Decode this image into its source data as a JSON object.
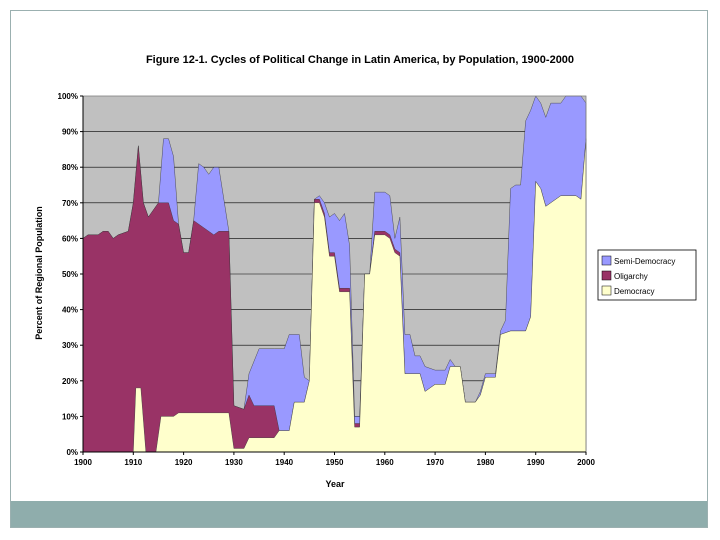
{
  "chart_data": {
    "type": "area",
    "stacked": true,
    "title": "Figure 12-1.  Cycles of Political Change in Latin America, by Population, 1900-2000",
    "xlabel": "Year",
    "ylabel": "Percent of Regional Population",
    "xlim": [
      1900,
      2000
    ],
    "ylim": [
      0,
      100
    ],
    "x_ticks": [
      "1900",
      "1910",
      "1920",
      "1930",
      "1940",
      "1950",
      "1960",
      "1970",
      "1980",
      "1990",
      "2000"
    ],
    "y_ticks": [
      "0%",
      "10%",
      "20%",
      "30%",
      "40%",
      "50%",
      "60%",
      "70%",
      "80%",
      "90%",
      "100%"
    ],
    "grid": "horizontal",
    "legend_position": "right",
    "colors": {
      "Semi-Democracy": "#9999ff",
      "Oligarchy": "#993366",
      "Democracy": "#ffffcc",
      "Plot background": "#c0c0c0"
    },
    "legend": [
      "Semi-Democracy",
      "Oligarchy",
      "Democracy"
    ],
    "series": [
      {
        "name": "Democracy",
        "points": [
          [
            1900,
            0
          ],
          [
            1910,
            0
          ],
          [
            1910.5,
            18
          ],
          [
            1911.5,
            18
          ],
          [
            1912.5,
            0
          ],
          [
            1914.5,
            0
          ],
          [
            1915.5,
            10
          ],
          [
            1918,
            10
          ],
          [
            1919,
            11
          ],
          [
            1929,
            11
          ],
          [
            1930,
            1
          ],
          [
            1932,
            1
          ],
          [
            1933,
            4
          ],
          [
            1938,
            4
          ],
          [
            1939,
            6
          ],
          [
            1941,
            6
          ],
          [
            1942,
            14
          ],
          [
            1944,
            14
          ],
          [
            1945,
            20
          ],
          [
            1946,
            70
          ],
          [
            1947,
            70
          ],
          [
            1948,
            66
          ],
          [
            1949,
            55
          ],
          [
            1950,
            55
          ],
          [
            1951,
            45
          ],
          [
            1952,
            45
          ],
          [
            1953,
            45
          ],
          [
            1954,
            7
          ],
          [
            1955,
            7
          ],
          [
            1956,
            50
          ],
          [
            1957,
            50
          ],
          [
            1958,
            61
          ],
          [
            1960,
            61
          ],
          [
            1961,
            60
          ],
          [
            1962,
            56
          ],
          [
            1963,
            55
          ],
          [
            1964,
            22
          ],
          [
            1967,
            22
          ],
          [
            1968,
            17
          ],
          [
            1970,
            19
          ],
          [
            1972,
            19
          ],
          [
            1973,
            24
          ],
          [
            1975,
            24
          ],
          [
            1976,
            14
          ],
          [
            1978,
            14
          ],
          [
            1979,
            16
          ],
          [
            1980,
            21
          ],
          [
            1982,
            21
          ],
          [
            1983,
            33
          ],
          [
            1985,
            34
          ],
          [
            1988,
            34
          ],
          [
            1989,
            38
          ],
          [
            1990,
            76
          ],
          [
            1991,
            74
          ],
          [
            1992,
            69
          ],
          [
            1993,
            70
          ],
          [
            1995,
            72
          ],
          [
            1998,
            72
          ],
          [
            1999,
            71
          ],
          [
            2000,
            88
          ]
        ]
      },
      {
        "name": "Oligarchy",
        "points": [
          [
            1900,
            60
          ],
          [
            1901,
            61
          ],
          [
            1903,
            61
          ],
          [
            1904,
            62
          ],
          [
            1905,
            62
          ],
          [
            1906,
            60
          ],
          [
            1907,
            61
          ],
          [
            1909,
            62
          ],
          [
            1910,
            70
          ],
          [
            1911,
            86
          ],
          [
            1912,
            70
          ],
          [
            1913,
            66
          ],
          [
            1915,
            70
          ],
          [
            1917,
            70
          ],
          [
            1918,
            65
          ],
          [
            1919,
            64
          ],
          [
            1920,
            56
          ],
          [
            1921,
            56
          ],
          [
            1922,
            65
          ],
          [
            1924,
            63
          ],
          [
            1926,
            61
          ],
          [
            1927,
            62
          ],
          [
            1929,
            62
          ],
          [
            1930,
            13
          ],
          [
            1932,
            12
          ],
          [
            1933,
            16
          ],
          [
            1934,
            13
          ],
          [
            1938,
            13
          ],
          [
            1939,
            6
          ],
          [
            1941,
            6
          ],
          [
            1942,
            14
          ],
          [
            1944,
            14
          ],
          [
            1945,
            20
          ],
          [
            1946,
            71
          ],
          [
            1947,
            71
          ],
          [
            1948,
            67
          ],
          [
            1949,
            56
          ],
          [
            1950,
            56
          ],
          [
            1951,
            46
          ],
          [
            1952,
            46
          ],
          [
            1953,
            46
          ],
          [
            1954,
            8
          ],
          [
            1955,
            8
          ],
          [
            1956,
            50
          ],
          [
            1957,
            50
          ],
          [
            1958,
            62
          ],
          [
            1960,
            62
          ],
          [
            1961,
            61
          ],
          [
            1962,
            57
          ],
          [
            1963,
            56
          ],
          [
            1964,
            22
          ],
          [
            1967,
            22
          ],
          [
            1968,
            17
          ],
          [
            1970,
            19
          ],
          [
            1972,
            19
          ],
          [
            1973,
            24
          ],
          [
            1975,
            24
          ],
          [
            1976,
            14
          ],
          [
            1978,
            14
          ],
          [
            1979,
            16
          ],
          [
            1980,
            21
          ],
          [
            1982,
            21
          ],
          [
            1983,
            33
          ],
          [
            1985,
            34
          ],
          [
            1988,
            34
          ],
          [
            1989,
            38
          ],
          [
            1990,
            76
          ],
          [
            1991,
            74
          ],
          [
            1992,
            69
          ],
          [
            1993,
            70
          ],
          [
            1995,
            72
          ],
          [
            1998,
            72
          ],
          [
            1999,
            71
          ],
          [
            2000,
            88
          ]
        ]
      },
      {
        "name": "Semi-Democracy",
        "points": [
          [
            1900,
            60
          ],
          [
            1901,
            61
          ],
          [
            1903,
            61
          ],
          [
            1904,
            62
          ],
          [
            1905,
            62
          ],
          [
            1906,
            60
          ],
          [
            1907,
            61
          ],
          [
            1909,
            62
          ],
          [
            1910,
            70
          ],
          [
            1911,
            86
          ],
          [
            1912,
            70
          ],
          [
            1913,
            66
          ],
          [
            1915,
            70
          ],
          [
            1916,
            88
          ],
          [
            1917,
            88
          ],
          [
            1918,
            83
          ],
          [
            1919,
            64
          ],
          [
            1920,
            56
          ],
          [
            1921,
            56
          ],
          [
            1922,
            65
          ],
          [
            1923,
            81
          ],
          [
            1924,
            80
          ],
          [
            1925,
            78
          ],
          [
            1926,
            80
          ],
          [
            1927,
            80
          ],
          [
            1929,
            62
          ],
          [
            1930,
            13
          ],
          [
            1932,
            12
          ],
          [
            1933,
            22
          ],
          [
            1935,
            29
          ],
          [
            1938,
            29
          ],
          [
            1940,
            29
          ],
          [
            1941,
            33
          ],
          [
            1943,
            33
          ],
          [
            1944,
            21
          ],
          [
            1945,
            20
          ],
          [
            1946,
            71
          ],
          [
            1947,
            72
          ],
          [
            1948,
            70
          ],
          [
            1949,
            66
          ],
          [
            1950,
            67
          ],
          [
            1951,
            65
          ],
          [
            1952,
            67
          ],
          [
            1953,
            58
          ],
          [
            1954,
            10
          ],
          [
            1955,
            10
          ],
          [
            1956,
            50
          ],
          [
            1957,
            50
          ],
          [
            1958,
            73
          ],
          [
            1960,
            73
          ],
          [
            1961,
            72
          ],
          [
            1962,
            60
          ],
          [
            1963,
            66
          ],
          [
            1964,
            33
          ],
          [
            1965,
            33
          ],
          [
            1966,
            27
          ],
          [
            1967,
            27
          ],
          [
            1968,
            24
          ],
          [
            1970,
            23
          ],
          [
            1972,
            23
          ],
          [
            1973,
            26
          ],
          [
            1974,
            24
          ],
          [
            1975,
            24
          ],
          [
            1976,
            14
          ],
          [
            1978,
            14
          ],
          [
            1979,
            17
          ],
          [
            1980,
            22
          ],
          [
            1982,
            22
          ],
          [
            1983,
            34
          ],
          [
            1984,
            37
          ],
          [
            1985,
            74
          ],
          [
            1986,
            75
          ],
          [
            1987,
            75
          ],
          [
            1988,
            93
          ],
          [
            1989,
            96
          ],
          [
            1990,
            100
          ],
          [
            1991,
            98
          ],
          [
            1992,
            94
          ],
          [
            1993,
            98
          ],
          [
            1995,
            98
          ],
          [
            1996,
            100
          ],
          [
            1999,
            100
          ],
          [
            2000,
            98
          ]
        ]
      }
    ]
  }
}
